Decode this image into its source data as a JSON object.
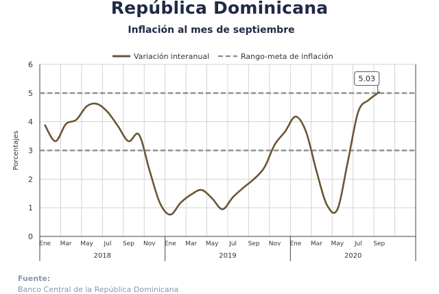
{
  "title": "República Dominicana",
  "subtitle": "Inflación al mes de septiembre",
  "source": {
    "label": "Fuente:",
    "text": "Banco Central de la República Dominicana"
  },
  "colors": {
    "series": "#6b5434",
    "target": "#909090",
    "text": "#1f2a44",
    "grid": "#d3d3d3"
  },
  "chart_data": {
    "type": "line",
    "ylabel": "Porcentajes",
    "ylim": [
      0,
      6
    ],
    "yticks": [
      "0",
      "1",
      "2",
      "3",
      "4",
      "5",
      "6"
    ],
    "xtick_labels": [
      "Ene",
      "Mar",
      "May",
      "Jul",
      "Sep",
      "Nov",
      "Ene",
      "Mar",
      "May",
      "Jul",
      "Sep",
      "Nov",
      "Ene",
      "Mar",
      "May",
      "Jul",
      "Sep"
    ],
    "years": [
      "2018",
      "2019",
      "2020"
    ],
    "grid": true,
    "legend_position": "top-center",
    "series": [
      {
        "name": "Variación interanual",
        "x": [
          "2018-01",
          "2018-02",
          "2018-03",
          "2018-04",
          "2018-05",
          "2018-06",
          "2018-07",
          "2018-08",
          "2018-09",
          "2018-10",
          "2018-11",
          "2018-12",
          "2019-01",
          "2019-02",
          "2019-03",
          "2019-04",
          "2019-05",
          "2019-06",
          "2019-07",
          "2019-08",
          "2019-09",
          "2019-10",
          "2019-11",
          "2019-12",
          "2020-01",
          "2020-02",
          "2020-03",
          "2020-04",
          "2020-05",
          "2020-06",
          "2020-07",
          "2020-08",
          "2020-09"
        ],
        "values": [
          3.88,
          3.32,
          3.92,
          4.07,
          4.54,
          4.62,
          4.34,
          3.84,
          3.32,
          3.55,
          2.32,
          1.17,
          0.76,
          1.18,
          1.46,
          1.62,
          1.33,
          0.95,
          1.37,
          1.7,
          2.0,
          2.4,
          3.2,
          3.66,
          4.18,
          3.65,
          2.28,
          1.1,
          0.94,
          2.61,
          4.35,
          4.76,
          5.03
        ]
      },
      {
        "name": "Rango-meta de inflación",
        "bounds": [
          3,
          5
        ]
      }
    ],
    "annotation": "5.03"
  }
}
